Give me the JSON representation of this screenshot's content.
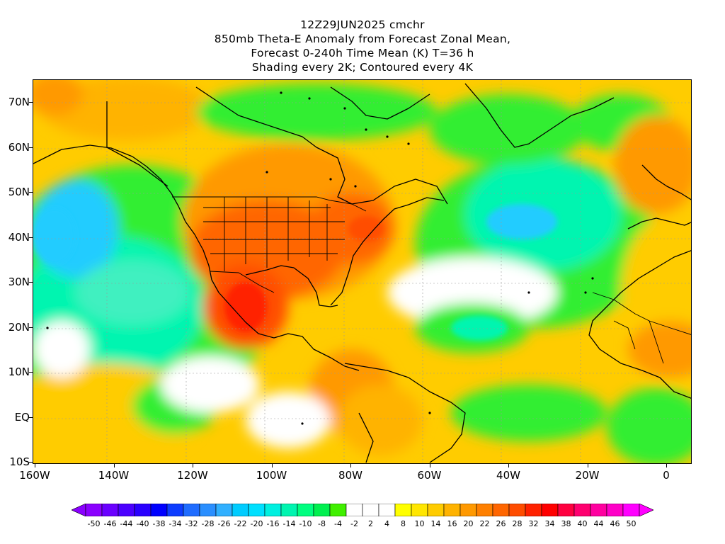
{
  "title": {
    "line1": "12Z29JUN2025 cmchr",
    "line2": "850mb Theta-E Anomaly from Forecast Zonal Mean,",
    "line3": "Forecast 0-240h Time Mean (K) T=36 h",
    "line4": "Shading every 2K; Contoured every 4K"
  },
  "axes": {
    "y_labels": [
      "70N",
      "60N",
      "50N",
      "40N",
      "30N",
      "20N",
      "10N",
      "EQ",
      "10S"
    ],
    "x_labels": [
      "160W",
      "140W",
      "120W",
      "100W",
      "80W",
      "60W",
      "40W",
      "20W",
      "0"
    ]
  },
  "colorbar": {
    "labels": [
      "-50",
      "-46",
      "-44",
      "-40",
      "-38",
      "-34",
      "-32",
      "-28",
      "-26",
      "-22",
      "-20",
      "-16",
      "-14",
      "-10",
      "-8",
      "-4",
      "-2",
      "2",
      "4",
      "8",
      "10",
      "14",
      "16",
      "20",
      "22",
      "26",
      "28",
      "32",
      "34",
      "38",
      "40",
      "44",
      "46",
      "50"
    ],
    "colors": [
      "#8a00ff",
      "#6a00ff",
      "#4b00ff",
      "#2a00ff",
      "#0000ff",
      "#0d3cff",
      "#1f6cff",
      "#2b8fff",
      "#31b0ff",
      "#00ccff",
      "#00e0ff",
      "#00f0e0",
      "#00f5b0",
      "#00ff80",
      "#00f050",
      "#40f000",
      "#ffffff",
      "#ffffff",
      "#ffffff",
      "#ffff00",
      "#ffe600",
      "#ffcc00",
      "#ffb300",
      "#ff9900",
      "#ff8000",
      "#ff6600",
      "#ff4d00",
      "#ff2200",
      "#ff0000",
      "#ff0040",
      "#ff0070",
      "#ff00a0",
      "#ff00c8",
      "#ff00ff"
    ]
  },
  "legend_colors": {
    "warm_strong": "#ff3300",
    "warm": "#ff9900",
    "mild": "#ffcc00",
    "neutral": "#ffffff",
    "cool": "#33ee33",
    "cooler": "#00f5b0",
    "coldest": "#22bbff"
  }
}
